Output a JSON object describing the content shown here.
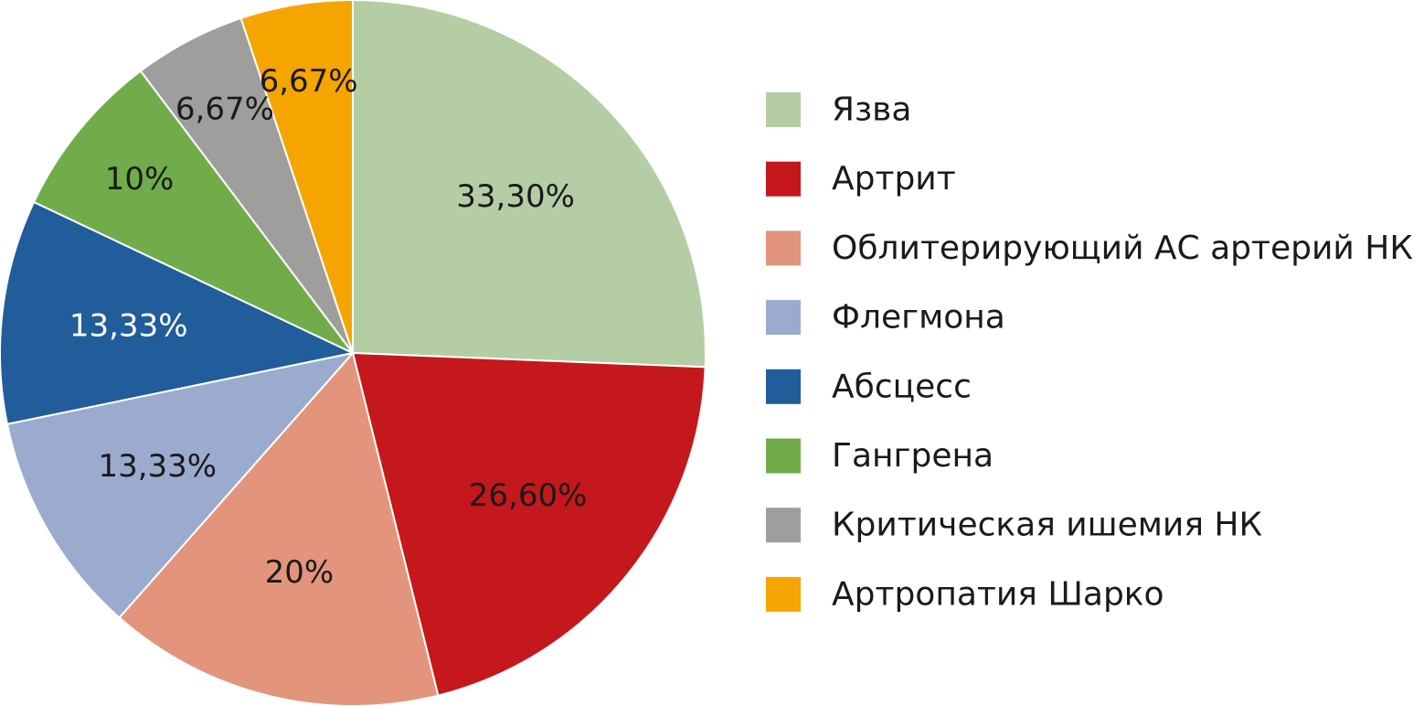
{
  "chart_data": {
    "type": "pie",
    "title": "",
    "slices": [
      {
        "name": "Язва",
        "value": 33.3,
        "label": "33,30%",
        "color": "#B5CDA4",
        "label_color": "#1a1a1a"
      },
      {
        "name": "Артрит",
        "value": 26.6,
        "label": "26,60%",
        "color": "#C4181C",
        "label_color": "#1a1a1a"
      },
      {
        "name": "Облитерирующий АС артерий НК",
        "value": 20,
        "label": "20%",
        "color": "#E2957C",
        "label_color": "#1a1a1a"
      },
      {
        "name": "Флегмона",
        "value": 13.33,
        "label": "13,33%",
        "color": "#9AABCE",
        "label_color": "#1a1a1a"
      },
      {
        "name": "Абсцесс",
        "value": 13.33,
        "label": "13,33%",
        "color": "#215D9A",
        "label_color": "#ffffff"
      },
      {
        "name": "Гангрена",
        "value": 10,
        "label": "10%",
        "color": "#71AC4A",
        "label_color": "#1a1a1a"
      },
      {
        "name": "Критическая ишемия НК",
        "value": 6.67,
        "label": "6,67%",
        "color": "#9E9E9C",
        "label_color": "#1a1a1a"
      },
      {
        "name": "Артропатия Шарко",
        "value": 6.67,
        "label": "6,67%",
        "color": "#F5A500",
        "label_color": "#1a1a1a"
      }
    ],
    "legend_position": "right"
  }
}
